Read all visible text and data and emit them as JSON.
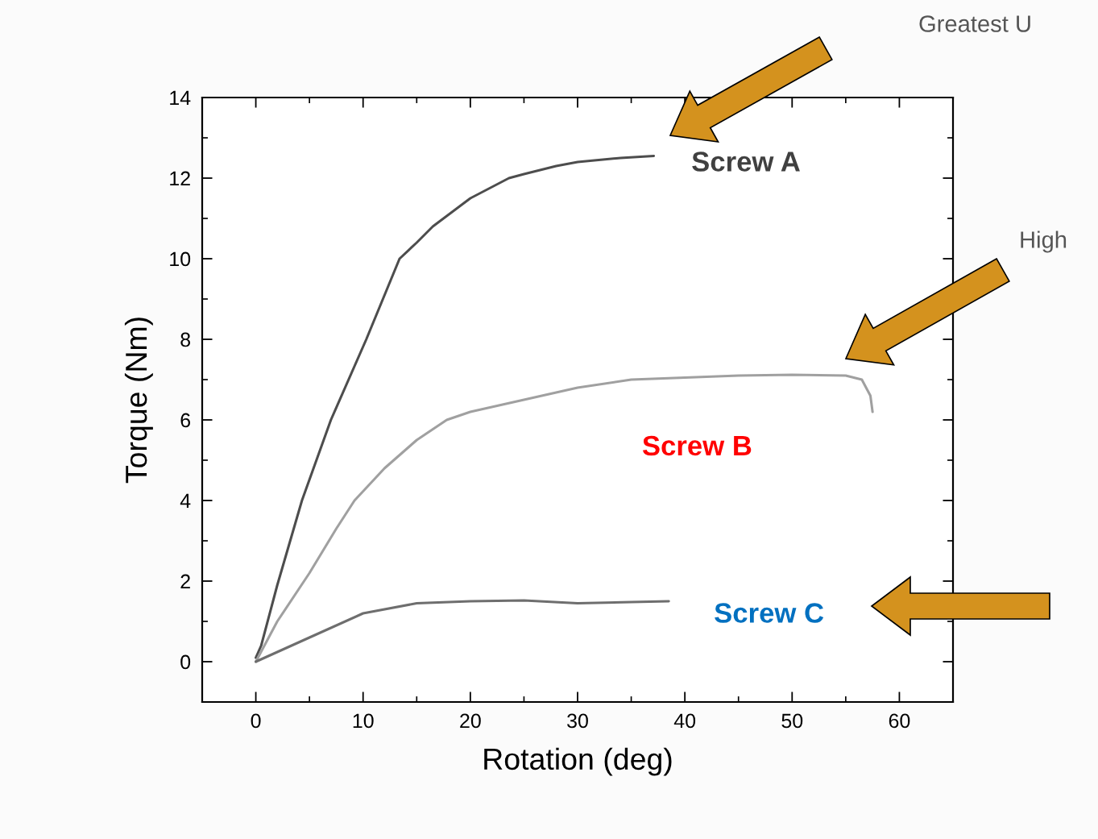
{
  "chart_data": {
    "type": "line",
    "xlabel": "Rotation (deg)",
    "ylabel": "Torque (Nm)",
    "xlim": [
      -5,
      65
    ],
    "ylim": [
      -1,
      14
    ],
    "xticks": [
      0,
      10,
      20,
      30,
      40,
      50,
      60
    ],
    "yticks": [
      0,
      2,
      4,
      6,
      8,
      10,
      12,
      14
    ],
    "grid": false,
    "legend": false,
    "marker": "none",
    "line_style": "solid",
    "series": [
      {
        "name": "Screw A",
        "color": "#4d4d4d",
        "x": [
          0,
          0.5,
          2,
          4.3,
          7,
          10.3,
          13.4,
          15,
          16.5,
          20,
          23.6,
          25,
          28,
          30,
          34,
          37.1
        ],
        "values": [
          0.1,
          0.4,
          1.9,
          4.0,
          6.0,
          8.0,
          10.0,
          10.4,
          10.8,
          11.5,
          12.0,
          12.1,
          12.3,
          12.4,
          12.5,
          12.55
        ]
      },
      {
        "name": "Screw B",
        "color": "#a0a0a0",
        "x": [
          0,
          2,
          5,
          7.5,
          9.2,
          12,
          15,
          17.8,
          20,
          25,
          30,
          35,
          40,
          45,
          50,
          55,
          56.5,
          57.3,
          57.5
        ],
        "values": [
          0,
          1.0,
          2.2,
          3.3,
          4.0,
          4.8,
          5.5,
          6.0,
          6.2,
          6.5,
          6.8,
          7.0,
          7.05,
          7.1,
          7.12,
          7.1,
          7.0,
          6.6,
          6.2
        ]
      },
      {
        "name": "Screw C",
        "color": "#6e6e6e",
        "x": [
          0,
          5,
          10,
          15,
          20,
          25,
          30,
          35,
          38.5
        ],
        "values": [
          0,
          0.6,
          1.2,
          1.45,
          1.5,
          1.52,
          1.45,
          1.48,
          1.5
        ]
      }
    ],
    "annotations": [
      "Greatest U",
      "High"
    ]
  }
}
